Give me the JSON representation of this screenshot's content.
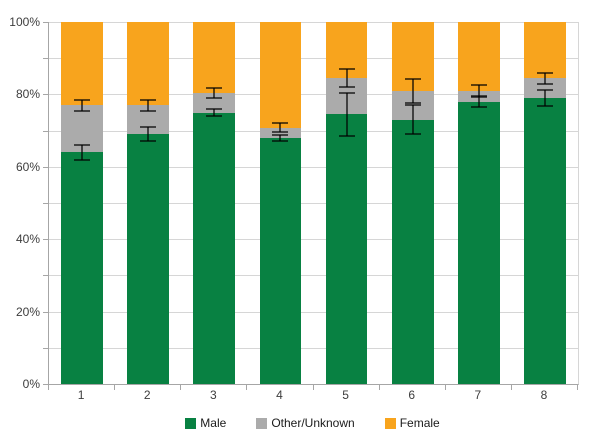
{
  "chart_data": {
    "type": "bar",
    "subtype": "stacked-percentage-column-with-error-bars",
    "title": "",
    "xlabel": "",
    "ylabel": "",
    "ylim": [
      0,
      100
    ],
    "grid": true,
    "grid_step": 10,
    "categories": [
      "1",
      "2",
      "3",
      "4",
      "5",
      "6",
      "7",
      "8"
    ],
    "series": [
      {
        "name": "Male",
        "color": "#088142",
        "values": [
          64,
          69,
          75,
          68,
          74.5,
          73,
          78,
          79
        ]
      },
      {
        "name": "Other/Unknown",
        "color": "#ABABAB",
        "values": [
          13,
          8,
          5.3,
          2.8,
          10,
          8,
          3,
          5.5
        ]
      },
      {
        "name": "Female",
        "color": "#F8A41D",
        "values": [
          23,
          23,
          19.7,
          29.2,
          15.5,
          19,
          19,
          15.5
        ]
      }
    ],
    "error_bars": [
      {
        "on": "male-top",
        "centers": [
          64,
          69,
          75,
          68,
          74.5,
          73,
          78,
          79
        ],
        "plus_minus": [
          2,
          2,
          1,
          0.8,
          6,
          4,
          1.6,
          2.3
        ]
      },
      {
        "on": "other-top",
        "centers": [
          77,
          77,
          80.3,
          70.8,
          84.5,
          81,
          81,
          84.5
        ],
        "plus_minus": [
          1.5,
          1.5,
          1.4,
          1.2,
          2.5,
          3.3,
          1.7,
          1.5
        ]
      }
    ],
    "y_axis": {
      "tick_labels": [
        "0%",
        "20%",
        "40%",
        "60%",
        "80%",
        "100%"
      ],
      "tick_label_values": [
        0,
        20,
        40,
        60,
        80,
        100
      ]
    },
    "legend": {
      "position": "bottom",
      "entries": [
        "Male",
        "Other/Unknown",
        "Female"
      ]
    },
    "colors": {
      "gridline": "#D6D6D6",
      "axis": "#A6A6A6",
      "text": "#3D3D3D",
      "error_bar": "rgba(0,0,0,0.62)",
      "background": "#FFFFFF"
    }
  }
}
